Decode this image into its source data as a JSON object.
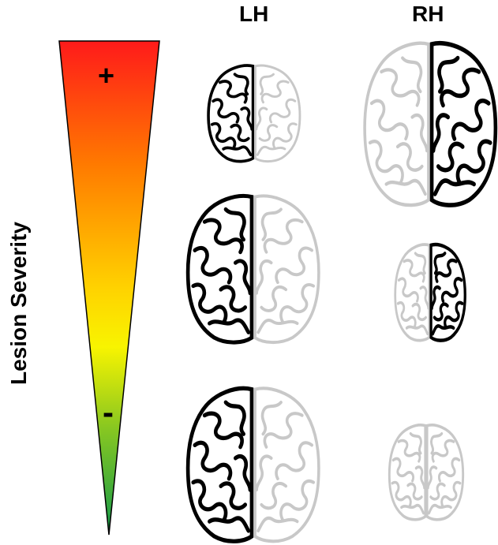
{
  "columns": {
    "left": "LH",
    "right": "RH"
  },
  "axis": {
    "label": "Lesion Severity",
    "high": "+",
    "low": "-"
  },
  "severity_gradient": [
    "#ff1a1a",
    "#ff7a00",
    "#ffd200",
    "#f8f400",
    "#8ac820",
    "#12994a"
  ],
  "colors": {
    "lesioned_hemisphere": "#000000",
    "intact_hemisphere": "#c8c8c8"
  },
  "rows": [
    {
      "lh_brain": "small-left-lesioned-brain-icon",
      "rh_brain": "large-right-lesioned-brain-icon"
    },
    {
      "lh_brain": "large-left-lesioned-brain-icon",
      "rh_brain": "medium-right-lesioned-brain-icon"
    },
    {
      "lh_brain": "large-left-lesioned-brain-icon",
      "rh_brain": "small-faint-brain-icon"
    }
  ]
}
